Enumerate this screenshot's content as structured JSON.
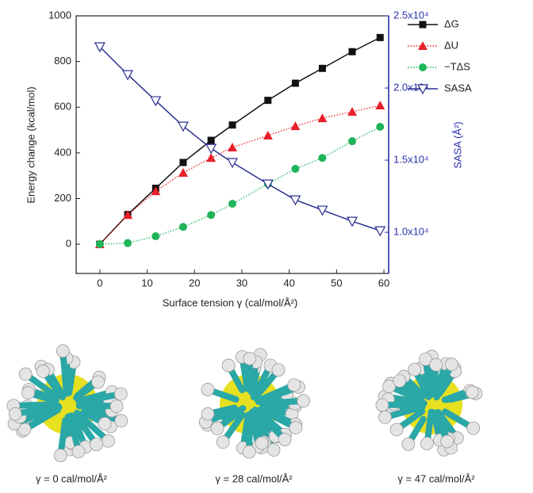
{
  "chart_data": {
    "type": "line",
    "x_label": "Surface tension γ (cal/mol/Å²)",
    "y_label": "Energy change (kcal/mol)",
    "y2_label": "SASA (Å²)",
    "x": [
      0,
      5.9,
      11.8,
      17.6,
      23.5,
      28,
      35.5,
      41.3,
      47,
      53.3,
      59.2
    ],
    "series": [
      {
        "name": "ΔG",
        "color": "#111111",
        "marker": "square",
        "line_style": "solid",
        "values": [
          0,
          130,
          245,
          358,
          455,
          522,
          630,
          705,
          770,
          843,
          905
        ]
      },
      {
        "name": "ΔU",
        "color": "#e8202a",
        "marker": "triangle-up",
        "line_style": "dotted",
        "values": [
          0,
          128,
          232,
          313,
          378,
          424,
          476,
          517,
          552,
          580,
          608
        ]
      },
      {
        "name": "−TΔS",
        "color": "#1fb45a",
        "marker": "circle",
        "line_style": "dotted",
        "values": [
          0,
          5,
          35,
          76,
          128,
          177,
          264,
          330,
          378,
          451,
          514
        ]
      },
      {
        "name": "SASA",
        "color": "#2a2f8f",
        "marker": "triangle-down-open",
        "line_style": "solid",
        "axis": "y2",
        "values": [
          22860,
          20930,
          19120,
          17360,
          15820,
          14840,
          13350,
          12250,
          11540,
          10770,
          10110
        ]
      }
    ],
    "xlim": [
      -5,
      61
    ],
    "xticks": [
      0,
      10,
      20,
      30,
      40,
      50,
      60
    ],
    "ylim": [
      -128,
      1000
    ],
    "yticks": [
      0,
      200,
      400,
      600,
      800,
      1000
    ],
    "y2lim": [
      7150,
      25000
    ],
    "y2ticks": [
      {
        "value": 10000,
        "label": "1.0x10⁴"
      },
      {
        "value": 15000,
        "label": "1.5x10⁴"
      },
      {
        "value": 20000,
        "label": "2.0x10⁴"
      },
      {
        "value": 25000,
        "label": "2.5x10⁴"
      }
    ],
    "y2_color": "#2a2fb0",
    "legend": "outside-right"
  },
  "images": [
    {
      "caption": "γ = 0 cal/mol/Å²"
    },
    {
      "caption": "γ = 28 cal/mol/Å²"
    },
    {
      "caption": "γ = 47 cal/mol/Å²"
    }
  ]
}
